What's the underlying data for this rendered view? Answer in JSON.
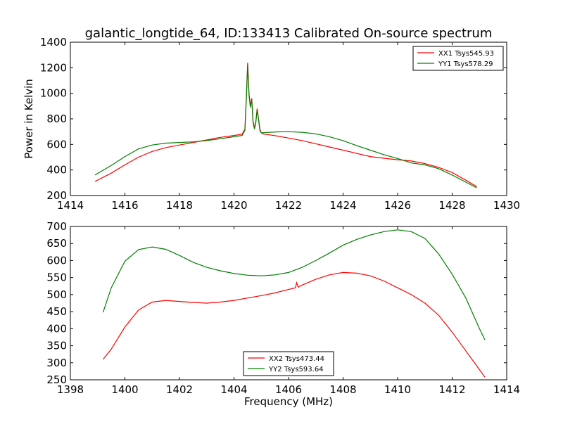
{
  "figure_title": "galantic_longtide_64, ID:133413 Calibrated On-source spectrum",
  "chart_data": [
    {
      "type": "line",
      "title": "galantic_longtide_64, ID:133413 Calibrated On-source spectrum",
      "xlabel": "",
      "ylabel": "Power in Kelvin",
      "xlim": [
        1414,
        1430
      ],
      "ylim": [
        200,
        1400
      ],
      "xticks": [
        1414,
        1416,
        1418,
        1420,
        1422,
        1424,
        1426,
        1428,
        1430
      ],
      "yticks": [
        200,
        400,
        600,
        800,
        1000,
        1200,
        1400
      ],
      "grid": false,
      "legend_position": "top-right",
      "series": [
        {
          "name": "XX1 Tsys545.93",
          "color": "#ff0000",
          "x": [
            1414.9,
            1415.5,
            1416.0,
            1416.5,
            1417.0,
            1417.5,
            1418.0,
            1418.5,
            1419.0,
            1419.5,
            1420.0,
            1420.3,
            1420.4,
            1420.45,
            1420.5,
            1420.55,
            1420.6,
            1420.65,
            1420.7,
            1420.75,
            1420.8,
            1420.85,
            1420.9,
            1420.95,
            1421.0,
            1421.1,
            1421.3,
            1421.6,
            1422.0,
            1422.5,
            1423.0,
            1423.5,
            1424.0,
            1424.5,
            1425.0,
            1425.5,
            1426.0,
            1426.5,
            1427.0,
            1427.5,
            1428.0,
            1428.5,
            1428.9
          ],
          "y": [
            310,
            375,
            440,
            500,
            545,
            575,
            595,
            615,
            635,
            655,
            670,
            680,
            720,
            950,
            1240,
            1000,
            900,
            960,
            780,
            730,
            780,
            880,
            800,
            720,
            690,
            680,
            675,
            665,
            650,
            630,
            605,
            580,
            555,
            530,
            505,
            492,
            480,
            470,
            450,
            420,
            380,
            320,
            270
          ]
        },
        {
          "name": "YY1 Tsys578.29",
          "color": "#008000",
          "x": [
            1414.9,
            1415.5,
            1416.0,
            1416.5,
            1417.0,
            1417.5,
            1418.0,
            1418.5,
            1419.0,
            1419.5,
            1420.0,
            1420.3,
            1420.4,
            1420.45,
            1420.5,
            1420.55,
            1420.6,
            1420.65,
            1420.7,
            1420.75,
            1420.8,
            1420.85,
            1420.9,
            1420.95,
            1421.0,
            1421.1,
            1421.3,
            1421.6,
            1422.0,
            1422.5,
            1423.0,
            1423.5,
            1424.0,
            1424.5,
            1425.0,
            1425.5,
            1426.0,
            1426.5,
            1427.0,
            1427.5,
            1428.0,
            1428.5,
            1428.9
          ],
          "y": [
            360,
            435,
            505,
            565,
            595,
            610,
            615,
            620,
            630,
            645,
            660,
            670,
            710,
            940,
            1220,
            990,
            890,
            950,
            770,
            720,
            770,
            870,
            790,
            710,
            690,
            692,
            695,
            698,
            700,
            695,
            683,
            660,
            630,
            590,
            555,
            520,
            490,
            455,
            440,
            410,
            360,
            305,
            260
          ]
        }
      ]
    },
    {
      "type": "line",
      "title": "",
      "xlabel": "Frequency (MHz)",
      "ylabel": "",
      "xlim": [
        1398,
        1414
      ],
      "ylim": [
        250,
        700
      ],
      "xticks": [
        1398,
        1400,
        1402,
        1404,
        1406,
        1408,
        1410,
        1412,
        1414
      ],
      "yticks": [
        250,
        300,
        350,
        400,
        450,
        500,
        550,
        600,
        650,
        700
      ],
      "grid": false,
      "legend_position": "bottom-center",
      "series": [
        {
          "name": "XX2 Tsys473.44",
          "color": "#ff0000",
          "x": [
            1399.2,
            1399.5,
            1400.0,
            1400.5,
            1401.0,
            1401.5,
            1402.0,
            1402.5,
            1403.0,
            1403.5,
            1404.0,
            1404.5,
            1405.0,
            1405.5,
            1406.0,
            1406.25,
            1406.3,
            1406.35,
            1406.5,
            1407.0,
            1407.5,
            1408.0,
            1408.5,
            1409.0,
            1409.5,
            1410.0,
            1410.5,
            1411.0,
            1411.5,
            1412.0,
            1412.5,
            1413.0,
            1413.2
          ],
          "y": [
            310,
            340,
            405,
            455,
            478,
            483,
            480,
            477,
            475,
            478,
            483,
            490,
            497,
            505,
            515,
            520,
            535,
            522,
            528,
            545,
            558,
            565,
            563,
            555,
            540,
            520,
            500,
            475,
            440,
            390,
            335,
            280,
            258
          ]
        },
        {
          "name": "YY2 Tsys593.64",
          "color": "#008000",
          "x": [
            1399.2,
            1399.5,
            1400.0,
            1400.5,
            1401.0,
            1401.5,
            1402.0,
            1402.5,
            1403.0,
            1403.5,
            1404.0,
            1404.5,
            1405.0,
            1405.5,
            1406.0,
            1406.5,
            1407.0,
            1407.5,
            1408.0,
            1408.5,
            1409.0,
            1409.5,
            1410.0,
            1410.5,
            1411.0,
            1411.5,
            1412.0,
            1412.5,
            1413.0,
            1413.2
          ],
          "y": [
            448,
            520,
            598,
            632,
            640,
            633,
            615,
            595,
            580,
            570,
            562,
            557,
            555,
            558,
            565,
            580,
            600,
            622,
            645,
            662,
            675,
            685,
            690,
            685,
            665,
            620,
            560,
            490,
            400,
            367
          ]
        }
      ]
    }
  ]
}
